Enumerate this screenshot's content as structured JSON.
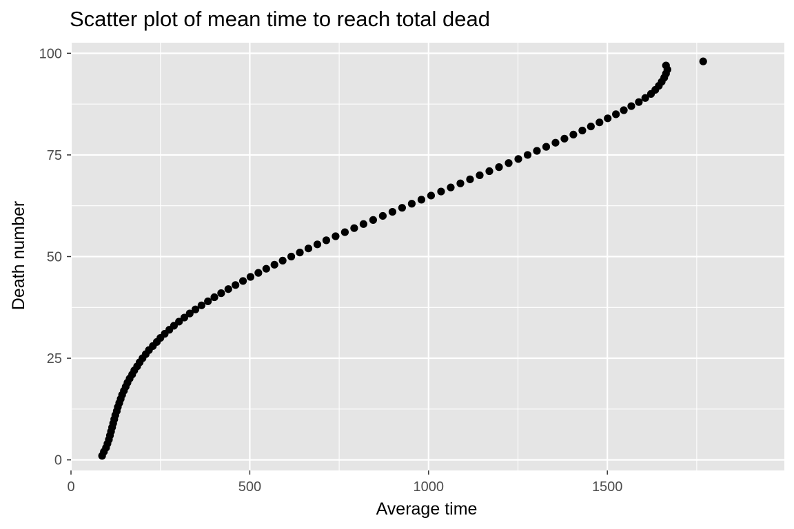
{
  "chart_data": {
    "type": "scatter",
    "title": "Scatter plot of mean time to reach total dead",
    "xlabel": "Average time",
    "ylabel": "Death number",
    "xlim": [
      0,
      1995
    ],
    "ylim": [
      -2.6,
      102.6
    ],
    "x_ticks": [
      0,
      500,
      1000,
      1500
    ],
    "x_tick_labels": [
      "0",
      "500",
      "1000",
      "1500"
    ],
    "y_ticks": [
      0,
      25,
      50,
      75,
      100
    ],
    "y_tick_labels": [
      "0",
      "25",
      "50",
      "75",
      "100"
    ],
    "grid": true,
    "panel_color": "#e5e5e5",
    "grid_color": "#ffffff",
    "point_color": "#000000",
    "points": [
      {
        "x": 87,
        "y": 1
      },
      {
        "x": 92,
        "y": 2
      },
      {
        "x": 98,
        "y": 3
      },
      {
        "x": 102,
        "y": 4
      },
      {
        "x": 106,
        "y": 5
      },
      {
        "x": 109,
        "y": 6
      },
      {
        "x": 112,
        "y": 7
      },
      {
        "x": 115,
        "y": 8
      },
      {
        "x": 118,
        "y": 9
      },
      {
        "x": 121,
        "y": 10
      },
      {
        "x": 124,
        "y": 11
      },
      {
        "x": 128,
        "y": 12
      },
      {
        "x": 131,
        "y": 13
      },
      {
        "x": 135,
        "y": 14
      },
      {
        "x": 139,
        "y": 15
      },
      {
        "x": 143,
        "y": 16
      },
      {
        "x": 148,
        "y": 17
      },
      {
        "x": 153,
        "y": 18
      },
      {
        "x": 158,
        "y": 19
      },
      {
        "x": 164,
        "y": 20
      },
      {
        "x": 171,
        "y": 21
      },
      {
        "x": 177,
        "y": 22
      },
      {
        "x": 185,
        "y": 23
      },
      {
        "x": 192,
        "y": 24
      },
      {
        "x": 200,
        "y": 25
      },
      {
        "x": 209,
        "y": 26
      },
      {
        "x": 218,
        "y": 27
      },
      {
        "x": 229,
        "y": 28
      },
      {
        "x": 240,
        "y": 29
      },
      {
        "x": 250,
        "y": 30
      },
      {
        "x": 262,
        "y": 31
      },
      {
        "x": 275,
        "y": 32
      },
      {
        "x": 288,
        "y": 33
      },
      {
        "x": 302,
        "y": 34
      },
      {
        "x": 317,
        "y": 35
      },
      {
        "x": 332,
        "y": 36
      },
      {
        "x": 348,
        "y": 37
      },
      {
        "x": 365,
        "y": 38
      },
      {
        "x": 383,
        "y": 39
      },
      {
        "x": 401,
        "y": 40
      },
      {
        "x": 420,
        "y": 41
      },
      {
        "x": 440,
        "y": 42
      },
      {
        "x": 460,
        "y": 43
      },
      {
        "x": 481,
        "y": 44
      },
      {
        "x": 502,
        "y": 45
      },
      {
        "x": 524,
        "y": 46
      },
      {
        "x": 546,
        "y": 47
      },
      {
        "x": 569,
        "y": 48
      },
      {
        "x": 592,
        "y": 49
      },
      {
        "x": 616,
        "y": 50
      },
      {
        "x": 640,
        "y": 51
      },
      {
        "x": 664,
        "y": 52
      },
      {
        "x": 689,
        "y": 53
      },
      {
        "x": 714,
        "y": 54
      },
      {
        "x": 740,
        "y": 55
      },
      {
        "x": 766,
        "y": 56
      },
      {
        "x": 792,
        "y": 57
      },
      {
        "x": 818,
        "y": 58
      },
      {
        "x": 845,
        "y": 59
      },
      {
        "x": 872,
        "y": 60
      },
      {
        "x": 899,
        "y": 61
      },
      {
        "x": 926,
        "y": 62
      },
      {
        "x": 953,
        "y": 63
      },
      {
        "x": 980,
        "y": 64
      },
      {
        "x": 1007,
        "y": 65
      },
      {
        "x": 1035,
        "y": 66
      },
      {
        "x": 1062,
        "y": 67
      },
      {
        "x": 1089,
        "y": 68
      },
      {
        "x": 1116,
        "y": 69
      },
      {
        "x": 1143,
        "y": 70
      },
      {
        "x": 1170,
        "y": 71
      },
      {
        "x": 1197,
        "y": 72
      },
      {
        "x": 1224,
        "y": 73
      },
      {
        "x": 1251,
        "y": 74
      },
      {
        "x": 1277,
        "y": 75
      },
      {
        "x": 1303,
        "y": 76
      },
      {
        "x": 1329,
        "y": 77
      },
      {
        "x": 1355,
        "y": 78
      },
      {
        "x": 1380,
        "y": 79
      },
      {
        "x": 1405,
        "y": 80
      },
      {
        "x": 1430,
        "y": 81
      },
      {
        "x": 1454,
        "y": 82
      },
      {
        "x": 1478,
        "y": 83
      },
      {
        "x": 1501,
        "y": 84
      },
      {
        "x": 1524,
        "y": 85
      },
      {
        "x": 1546,
        "y": 86
      },
      {
        "x": 1567,
        "y": 87
      },
      {
        "x": 1588,
        "y": 88
      },
      {
        "x": 1606,
        "y": 89
      },
      {
        "x": 1622,
        "y": 90
      },
      {
        "x": 1634,
        "y": 91
      },
      {
        "x": 1644,
        "y": 92
      },
      {
        "x": 1652,
        "y": 93
      },
      {
        "x": 1659,
        "y": 94
      },
      {
        "x": 1664,
        "y": 95
      },
      {
        "x": 1668,
        "y": 96
      },
      {
        "x": 1664,
        "y": 97
      },
      {
        "x": 1768,
        "y": 98
      }
    ]
  }
}
